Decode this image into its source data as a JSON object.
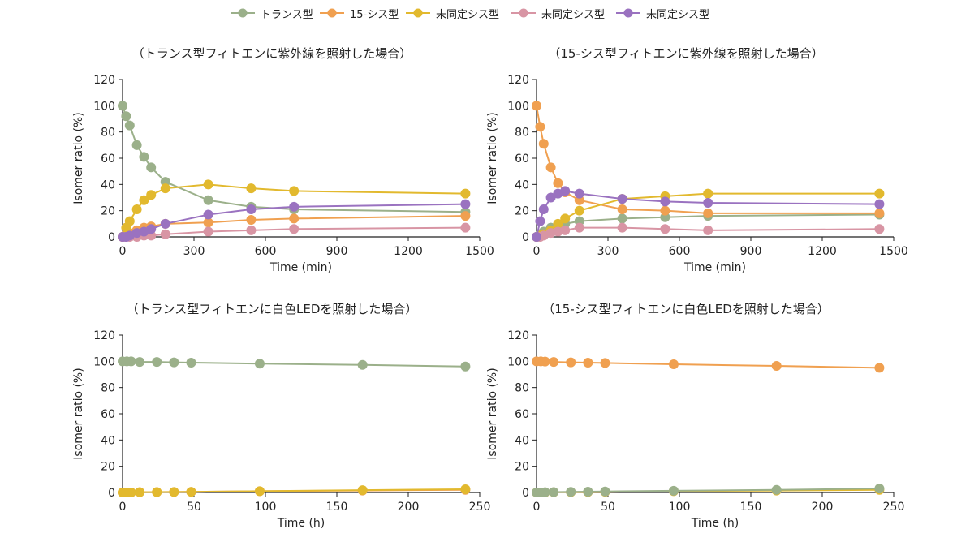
{
  "legend": [
    {
      "label": "トランス型",
      "color": "#9bb08a"
    },
    {
      "label": "15-シス型",
      "color": "#f0a050"
    },
    {
      "label": "未同定シス型",
      "color": "#e2b92e"
    },
    {
      "label": "未同定シス型",
      "color": "#d895a4"
    },
    {
      "label": "未同定シス型",
      "color": "#9a72c0"
    }
  ],
  "chart_data": [
    {
      "type": "line",
      "title": "（トランス型フィトエンに紫外線を照射した場合）",
      "xlabel": "Time (min)",
      "ylabel": "Isomer ratio (%)",
      "xlim": [
        0,
        1500
      ],
      "ylim": [
        0,
        120
      ],
      "xticks": [
        0,
        300,
        600,
        900,
        1200,
        1500
      ],
      "yticks": [
        0,
        20,
        40,
        60,
        80,
        100,
        120
      ],
      "x": [
        0,
        15,
        30,
        60,
        90,
        120,
        180,
        360,
        540,
        720,
        1440
      ],
      "series": [
        {
          "name": "トランス型",
          "color": "#9bb08a",
          "values": [
            100,
            92,
            85,
            70,
            61,
            53,
            42,
            28,
            23,
            21,
            19
          ]
        },
        {
          "name": "15-シス型",
          "color": "#f0a050",
          "values": [
            0,
            2,
            3,
            5,
            7,
            8,
            10,
            11,
            13,
            14,
            16
          ]
        },
        {
          "name": "未同定シス型",
          "color": "#e2b92e",
          "values": [
            0,
            7,
            12,
            21,
            28,
            32,
            37,
            40,
            37,
            35,
            33
          ]
        },
        {
          "name": "未同定シス型",
          "color": "#d895a4",
          "values": [
            0,
            0,
            0,
            0,
            1,
            1,
            2,
            4,
            5,
            6,
            7
          ]
        },
        {
          "name": "未同定シス型",
          "color": "#9a72c0",
          "values": [
            0,
            0,
            1,
            3,
            4,
            6,
            10,
            17,
            21,
            23,
            25
          ]
        }
      ]
    },
    {
      "type": "line",
      "title": "（15-シス型フィトエンに紫外線を照射した場合）",
      "xlabel": "Time (min)",
      "ylabel": "Isomer ratio (%)",
      "xlim": [
        0,
        1500
      ],
      "ylim": [
        0,
        120
      ],
      "xticks": [
        0,
        300,
        600,
        900,
        1200,
        1500
      ],
      "yticks": [
        0,
        20,
        40,
        60,
        80,
        100,
        120
      ],
      "x": [
        0,
        15,
        30,
        60,
        90,
        120,
        180,
        360,
        540,
        720,
        1440
      ],
      "series": [
        {
          "name": "トランス型",
          "color": "#9bb08a",
          "values": [
            0,
            2,
            4,
            7,
            9,
            10,
            12,
            14,
            15,
            16,
            17
          ]
        },
        {
          "name": "15-シス型",
          "color": "#f0a050",
          "values": [
            100,
            84,
            71,
            53,
            41,
            34,
            28,
            21,
            20,
            18,
            18
          ]
        },
        {
          "name": "未同定シス型",
          "color": "#e2b92e",
          "values": [
            0,
            1,
            2,
            5,
            10,
            14,
            20,
            29,
            31,
            33,
            33
          ]
        },
        {
          "name": "未同定シス型",
          "color": "#d895a4",
          "values": [
            0,
            0,
            1,
            3,
            4,
            5,
            7,
            7,
            6,
            5,
            6
          ]
        },
        {
          "name": "未同定シス型",
          "color": "#9a72c0",
          "values": [
            0,
            12,
            21,
            30,
            33,
            35,
            33,
            29,
            27,
            26,
            25
          ]
        }
      ]
    },
    {
      "type": "line",
      "title": "（トランス型フィトエンに白色LEDを照射した場合）",
      "xlabel": "Time (h)",
      "ylabel": "Isomer ratio (%)",
      "xlim": [
        0,
        250
      ],
      "ylim": [
        0,
        120
      ],
      "xticks": [
        0,
        50,
        100,
        150,
        200,
        250
      ],
      "yticks": [
        0,
        20,
        40,
        60,
        80,
        100,
        120
      ],
      "x": [
        0,
        3,
        6,
        12,
        24,
        36,
        48,
        96,
        168,
        240
      ],
      "series": [
        {
          "name": "トランス型",
          "color": "#9bb08a",
          "values": [
            100,
            100,
            100,
            99.5,
            99.5,
            99.2,
            99,
            98.2,
            97.3,
            96
          ]
        },
        {
          "name": "15-シス型",
          "color": "#f0a050",
          "values": [
            0,
            0,
            0,
            0.2,
            0.3,
            0.4,
            0.5,
            1,
            1.5,
            2
          ]
        },
        {
          "name": "未同定シス型",
          "color": "#e2b92e",
          "values": [
            0,
            0,
            0,
            0.2,
            0.3,
            0.4,
            0.5,
            1,
            1.8,
            2.5
          ]
        }
      ]
    },
    {
      "type": "line",
      "title": "（15-シス型フィトエンに白色LEDを照射した場合）",
      "xlabel": "Time (h)",
      "ylabel": "Isomer ratio (%)",
      "xlim": [
        0,
        250
      ],
      "ylim": [
        0,
        120
      ],
      "xticks": [
        0,
        50,
        100,
        150,
        200,
        250
      ],
      "yticks": [
        0,
        20,
        40,
        60,
        80,
        100,
        120
      ],
      "x": [
        0,
        3,
        6,
        12,
        24,
        36,
        48,
        96,
        168,
        240
      ],
      "series": [
        {
          "name": "15-シス型",
          "color": "#f0a050",
          "values": [
            100,
            100,
            99.8,
            99.5,
            99.2,
            99,
            98.7,
            97.7,
            96.5,
            95
          ]
        },
        {
          "name": "未同定シス型",
          "color": "#e2b92e",
          "values": [
            0,
            0,
            0.1,
            0.2,
            0.3,
            0.4,
            0.5,
            1,
            1.5,
            2
          ]
        },
        {
          "name": "トランス型",
          "color": "#9bb08a",
          "values": [
            0,
            0,
            0.2,
            0.3,
            0.5,
            0.6,
            0.8,
            1.3,
            2,
            3
          ]
        }
      ]
    }
  ]
}
